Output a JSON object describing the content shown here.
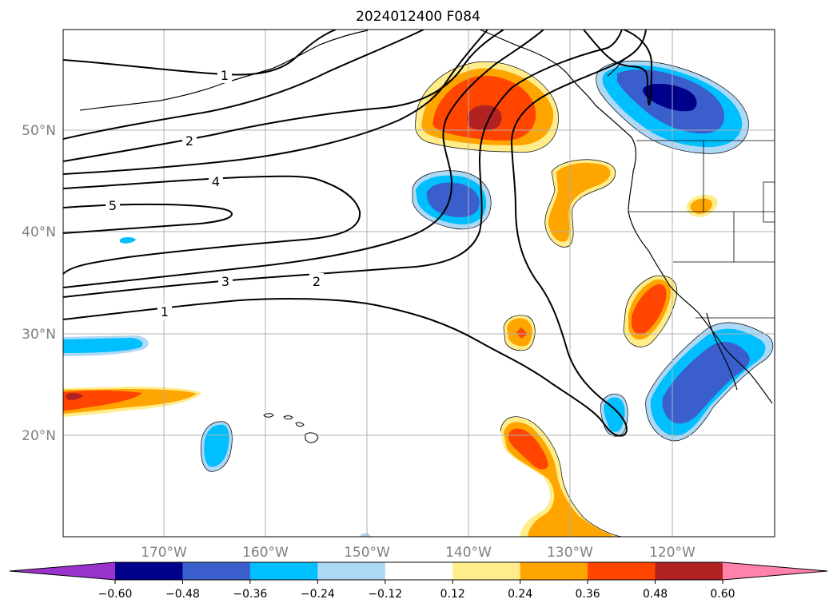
{
  "title": "2024012400 F084",
  "latitude_labels": [
    "50°N",
    "40°N",
    "30°N",
    "20°N"
  ],
  "longitude_labels": [
    "170°W",
    "160°W",
    "150°W",
    "140°W",
    "130°W",
    "120°W"
  ],
  "contour_labels": [
    "1",
    "2",
    "4",
    "5",
    "3",
    "2",
    "1"
  ],
  "colorbar": {
    "tick_labels": [
      "−0.60",
      "−0.48",
      "−0.36",
      "−0.24",
      "−0.12",
      "0.12",
      "0.24",
      "0.36",
      "0.48",
      "0.60"
    ],
    "colors": [
      "#9a33cc",
      "#00008b",
      "#3a5fcd",
      "#00bfff",
      "#add8f6",
      "#ffffff",
      "#ffec8b",
      "#ffa500",
      "#ff4500",
      "#b22222",
      "#ff82ab"
    ]
  },
  "colors": {
    "line": "#000000",
    "grid": "#b0b0b0",
    "axis_label": "#808080"
  }
}
